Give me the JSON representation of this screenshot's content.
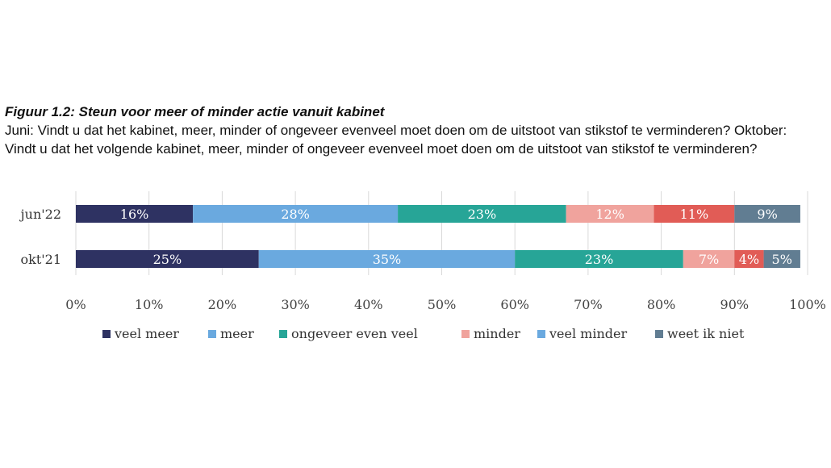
{
  "figure": {
    "title": "Figuur 1.2: Steun voor meer of minder actie vanuit kabinet",
    "subtitle": "Juni: Vindt u dat het kabinet, meer, minder of ongeveer evenveel moet doen om de uitstoot van stikstof te verminderen? Oktober: Vindt u dat het volgende kabinet, meer, minder of ongeveer evenveel moet doen om de uitstoot van stikstof te verminderen?"
  },
  "chart_data": {
    "type": "bar",
    "orientation": "horizontal",
    "stacked": true,
    "title": "Figuur 1.2: Steun voor meer of minder actie vanuit kabinet",
    "categories": [
      "jun'22",
      "okt'21"
    ],
    "series": [
      {
        "name": "veel meer",
        "color": "#2e3262",
        "values": [
          16,
          25
        ],
        "labels": [
          "16%",
          "25%"
        ]
      },
      {
        "name": "meer",
        "color": "#6aa9df",
        "values": [
          28,
          35
        ],
        "labels": [
          "28%",
          "35%"
        ]
      },
      {
        "name": "ongeveer even veel",
        "color": "#27a597",
        "values": [
          23,
          23
        ],
        "labels": [
          "23%",
          "23%"
        ]
      },
      {
        "name": "minder",
        "color": "#f0a39d",
        "values": [
          12,
          7
        ],
        "labels": [
          "12%",
          "7%"
        ]
      },
      {
        "name": "veel minder",
        "color": "#e15c56",
        "values": [
          11,
          4
        ],
        "labels": [
          "11%",
          "4%"
        ]
      },
      {
        "name": "weet ik niet",
        "color": "#617d92",
        "values": [
          9,
          5
        ],
        "labels": [
          "9%",
          "5%"
        ]
      }
    ],
    "xlim": [
      0,
      100
    ],
    "xticks": [
      "0%",
      "10%",
      "20%",
      "30%",
      "40%",
      "50%",
      "60%",
      "70%",
      "80%",
      "90%",
      "100%"
    ],
    "legend_marker_colors": [
      "#2e3262",
      "#6aa9df",
      "#27a597",
      "#f0a39d",
      "#6aa9df",
      "#617d92"
    ],
    "grid": true,
    "legend": "bottom"
  }
}
